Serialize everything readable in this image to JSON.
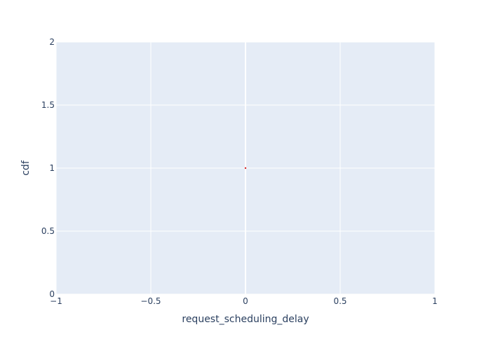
{
  "chart_data": {
    "type": "scatter",
    "title": "",
    "xlabel": "request_scheduling_delay",
    "ylabel": "cdf",
    "xlim": [
      -1,
      1
    ],
    "ylim": [
      0,
      2
    ],
    "x_ticks": [
      -1,
      -0.5,
      0,
      0.5,
      1
    ],
    "x_tick_labels": [
      "−1",
      "−0.5",
      "0",
      "0.5",
      "1"
    ],
    "y_ticks": [
      0,
      0.5,
      1,
      1.5,
      2
    ],
    "y_tick_labels": [
      "0",
      "0.5",
      "1",
      "1.5",
      "2"
    ],
    "grid": true,
    "legend": "none",
    "series": [
      {
        "x": [
          0
        ],
        "y": [
          1
        ],
        "color": "#d62728"
      }
    ]
  },
  "colors": {
    "plot_background": "#e5ecf6",
    "grid": "#ffffff",
    "text": "#2a3f5f"
  }
}
